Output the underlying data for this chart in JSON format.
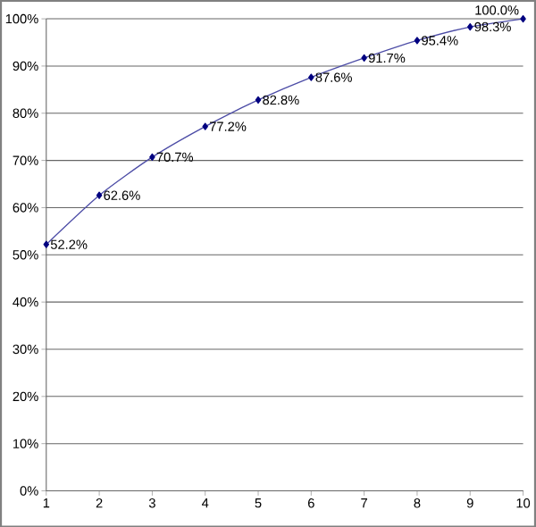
{
  "chart_data": {
    "type": "line",
    "x": [
      1,
      2,
      3,
      4,
      5,
      6,
      7,
      8,
      9,
      10
    ],
    "series": [
      {
        "color": "#000080",
        "values": [
          52.2,
          62.6,
          70.7,
          77.2,
          82.8,
          87.6,
          91.7,
          95.4,
          98.3,
          100.0
        ],
        "value_labels": [
          "52.2%",
          "62.6%",
          "70.7%",
          "77.2%",
          "82.8%",
          "87.6%",
          "91.7%",
          "95.4%",
          "98.3%",
          "100.0%"
        ]
      }
    ],
    "xlim": [
      1,
      10
    ],
    "xticks": [
      1,
      2,
      3,
      4,
      5,
      6,
      7,
      8,
      9,
      10
    ],
    "ylim": [
      0,
      100
    ],
    "yticks": [
      {
        "value": 0,
        "label": "0%"
      },
      {
        "value": 10,
        "label": "10%"
      },
      {
        "value": 20,
        "label": "20%"
      },
      {
        "value": 30,
        "label": "30%"
      },
      {
        "value": 40,
        "label": "40%"
      },
      {
        "value": 50,
        "label": "50%"
      },
      {
        "value": 60,
        "label": "60%"
      },
      {
        "value": 70,
        "label": "70%"
      },
      {
        "value": 80,
        "label": "80%"
      },
      {
        "value": 90,
        "label": "90%"
      },
      {
        "value": 100,
        "label": "100%"
      }
    ],
    "grid": "y",
    "marker": "diamond",
    "line_style": "solid"
  }
}
